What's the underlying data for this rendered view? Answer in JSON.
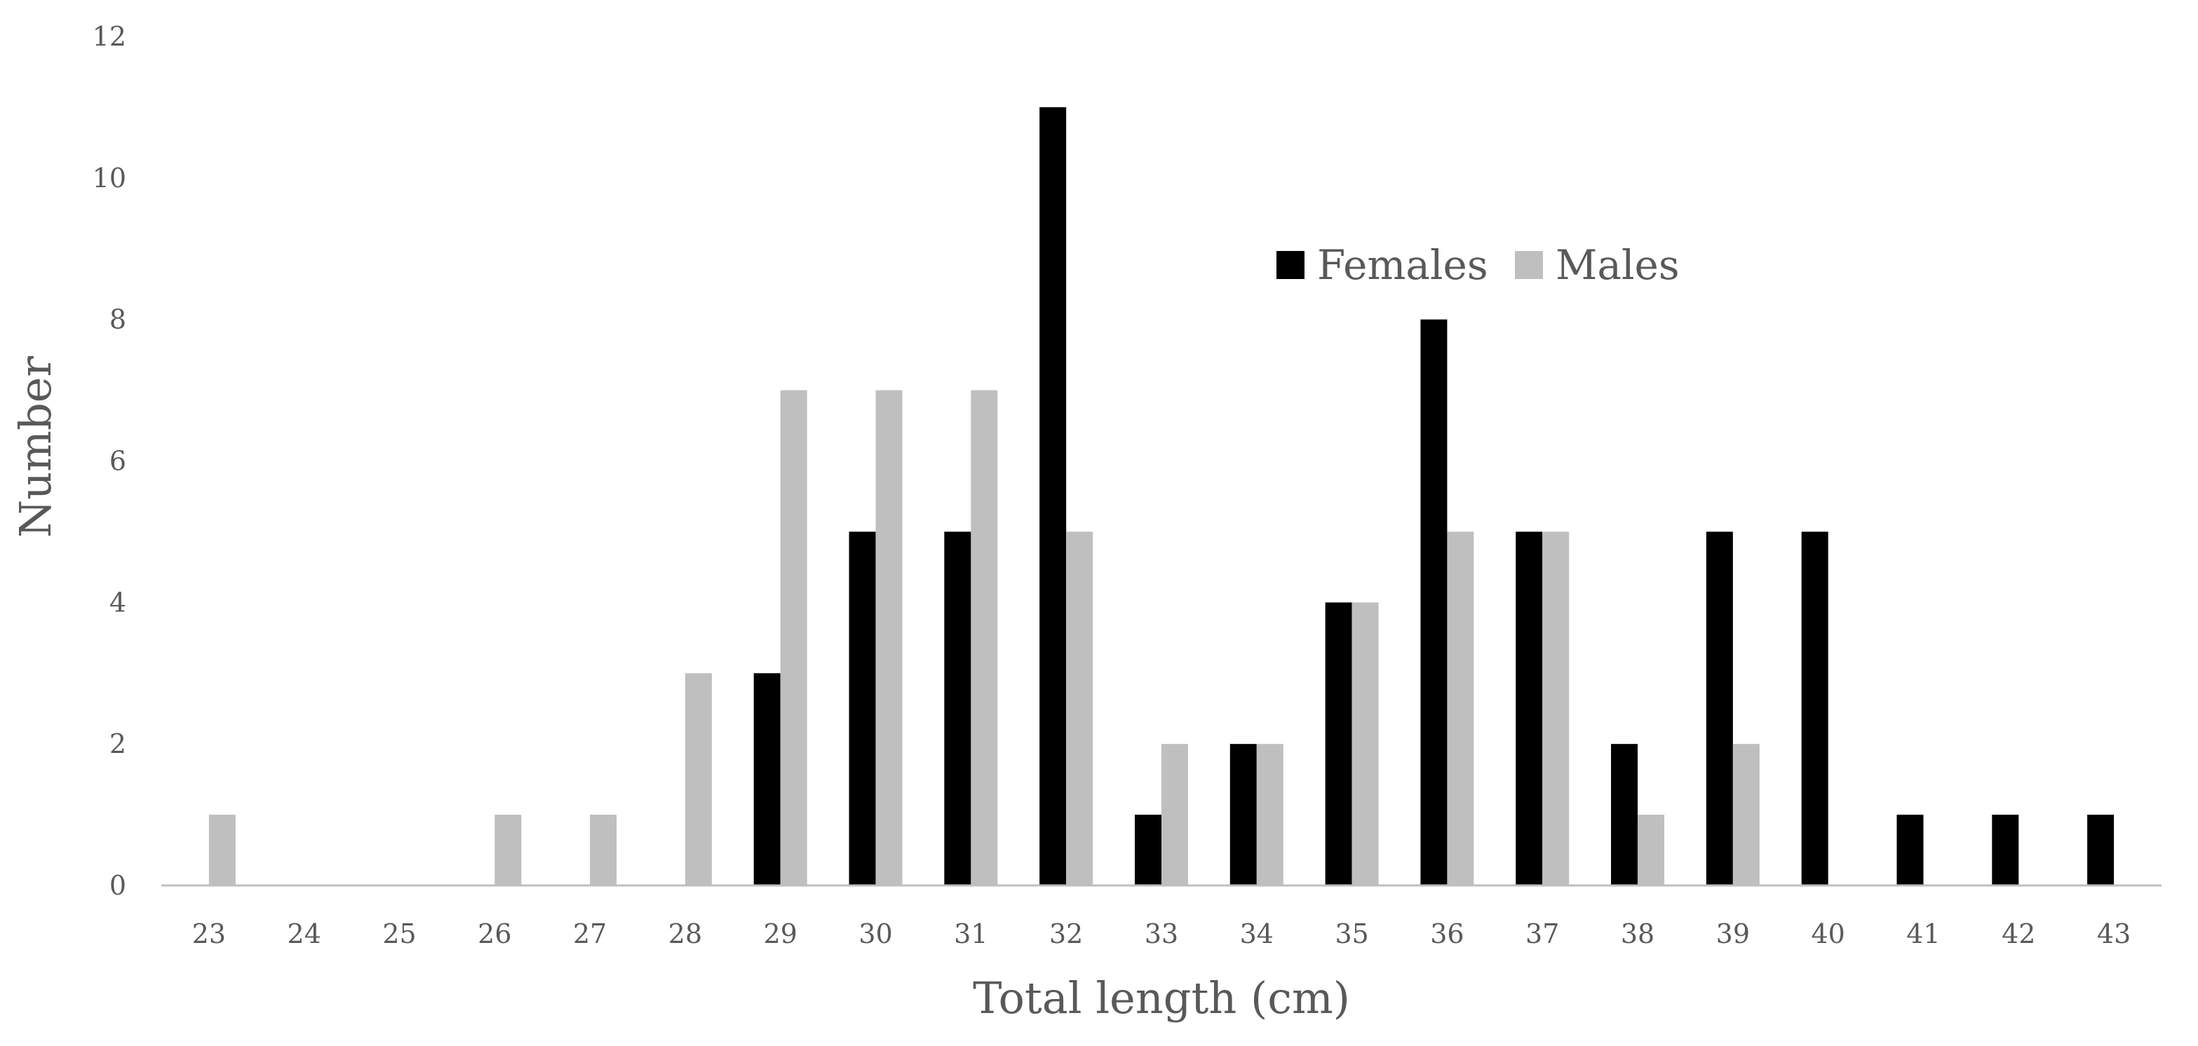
{
  "chart_data": {
    "type": "bar",
    "title": "",
    "xlabel": "Total length (cm)",
    "ylabel": "Number",
    "categories": [
      "23",
      "24",
      "25",
      "26",
      "27",
      "28",
      "29",
      "30",
      "31",
      "32",
      "33",
      "34",
      "35",
      "36",
      "37",
      "38",
      "39",
      "40",
      "41",
      "42",
      "43"
    ],
    "series": [
      {
        "name": "Females",
        "color": "#000000",
        "values": [
          0,
          0,
          0,
          0,
          0,
          0,
          3,
          5,
          5,
          11,
          1,
          2,
          4,
          8,
          5,
          2,
          5,
          5,
          1,
          1,
          1
        ]
      },
      {
        "name": "Males",
        "color": "#bfbfbf",
        "values": [
          1,
          0,
          0,
          1,
          1,
          3,
          7,
          7,
          7,
          5,
          2,
          2,
          4,
          5,
          5,
          1,
          2,
          0,
          0,
          0,
          0
        ]
      }
    ],
    "ylim": [
      0,
      12
    ],
    "yticks": [
      0,
      2,
      4,
      6,
      8,
      10,
      12
    ],
    "grid": false,
    "legend_position": "top-right"
  }
}
